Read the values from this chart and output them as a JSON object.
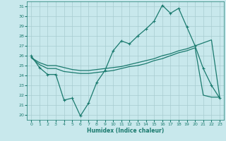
{
  "xlabel": "Humidex (Indice chaleur)",
  "x_values": [
    0,
    1,
    2,
    3,
    4,
    5,
    6,
    7,
    8,
    9,
    10,
    11,
    12,
    13,
    14,
    15,
    16,
    17,
    18,
    19,
    20,
    21,
    22,
    23
  ],
  "line1_y": [
    26.0,
    24.8,
    24.1,
    24.1,
    21.5,
    21.7,
    19.9,
    21.2,
    23.3,
    24.5,
    26.5,
    27.5,
    27.2,
    28.0,
    28.7,
    29.5,
    31.1,
    30.3,
    30.8,
    28.9,
    27.0,
    24.7,
    23.0,
    21.7
  ],
  "line2_y": [
    25.8,
    25.3,
    25.0,
    25.0,
    24.8,
    24.6,
    24.5,
    24.5,
    24.6,
    24.7,
    24.8,
    24.9,
    25.1,
    25.3,
    25.5,
    25.7,
    26.0,
    26.2,
    26.5,
    26.7,
    27.0,
    27.3,
    27.6,
    21.8
  ],
  "line3_y": [
    25.8,
    25.1,
    24.7,
    24.7,
    24.4,
    24.3,
    24.2,
    24.2,
    24.3,
    24.4,
    24.5,
    24.7,
    24.9,
    25.0,
    25.2,
    25.5,
    25.7,
    26.0,
    26.3,
    26.5,
    26.8,
    22.0,
    21.8,
    21.8
  ],
  "xlim": [
    -0.5,
    23.5
  ],
  "ylim": [
    19.5,
    31.5
  ],
  "yticks": [
    20,
    21,
    22,
    23,
    24,
    25,
    26,
    27,
    28,
    29,
    30,
    31
  ],
  "xticks": [
    0,
    1,
    2,
    3,
    4,
    5,
    6,
    7,
    8,
    9,
    10,
    11,
    12,
    13,
    14,
    15,
    16,
    17,
    18,
    19,
    20,
    21,
    22,
    23
  ],
  "line_color": "#1a7a6e",
  "bg_color": "#c8e8ec",
  "grid_color": "#a8ccd0",
  "tick_color": "#1a7a6e"
}
